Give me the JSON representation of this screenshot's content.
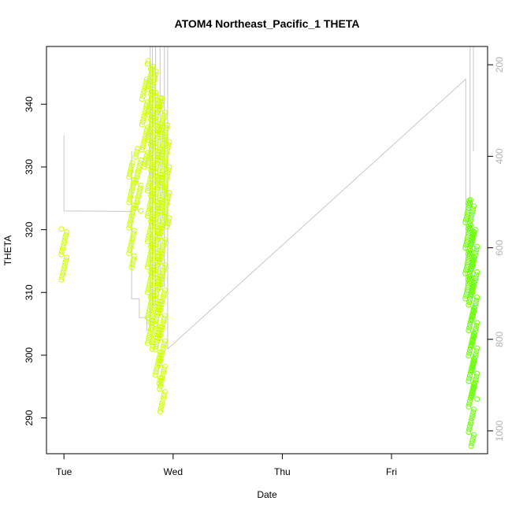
{
  "chart_data": {
    "type": "scatter",
    "title": "ATOM4 Northeast_Pacific_1 THETA",
    "xlabel": "Date",
    "ylabel": "THETA",
    "x_tick_labels": [
      "Tue",
      "Wed",
      "Thu",
      "Fri"
    ],
    "x_tick_values": [
      0,
      1,
      2,
      3
    ],
    "xlim": [
      -0.16,
      3.88
    ],
    "ylim": [
      284.3,
      349.2
    ],
    "y_ticks": [
      290,
      300,
      310,
      320,
      330,
      340
    ],
    "y2lim": [
      1050,
      160
    ],
    "y2_ticks": [
      200,
      400,
      600,
      800,
      1000
    ],
    "y2_label_color": "#b3b3b3",
    "grid": false,
    "colors": {
      "scatter_early": "#ccff00",
      "scatter_late": "#66ff00",
      "line": "#c8c8c8",
      "axis": "#000000"
    },
    "series": [
      {
        "role": "scatter-clusters",
        "clusters": [
          {
            "x": 0.0,
            "y_min": 312.0,
            "y_max": 320.5,
            "color": "#ccff00"
          },
          {
            "x": 0.62,
            "y_min": 314.0,
            "y_max": 331.0,
            "color": "#ccff00"
          },
          {
            "x": 0.68,
            "y_min": 323.0,
            "y_max": 333.0,
            "color": "#ccff00"
          },
          {
            "x": 0.74,
            "y_min": 330.0,
            "y_max": 344.0,
            "color": "#ccff00"
          },
          {
            "x": 0.79,
            "y_min": 301.0,
            "y_max": 347.0,
            "color": "#ccff00"
          },
          {
            "x": 0.82,
            "y_min": 302.0,
            "y_max": 346.0,
            "color": "#ccff00"
          },
          {
            "x": 0.86,
            "y_min": 295.5,
            "y_max": 342.0,
            "color": "#ccff00"
          },
          {
            "x": 0.9,
            "y_min": 291.0,
            "y_max": 341.0,
            "color": "#ccff00"
          },
          {
            "x": 0.94,
            "y_min": 320.5,
            "y_max": 337.0,
            "color": "#ccff00"
          },
          {
            "x": 3.7,
            "y_min": 309.0,
            "y_max": 325.0,
            "color": "#66ff00"
          },
          {
            "x": 3.73,
            "y_min": 285.5,
            "y_max": 325.0,
            "color": "#66ff00"
          },
          {
            "x": 3.76,
            "y_min": 293.0,
            "y_max": 320.0,
            "color": "#66ff00"
          }
        ]
      },
      {
        "role": "depth-line",
        "x": [
          0.0,
          0.0,
          0.62,
          0.62,
          0.62,
          0.69,
          0.69,
          0.76,
          0.76,
          0.79,
          0.79,
          0.81,
          0.81,
          0.84,
          0.84,
          0.88,
          0.88,
          0.92,
          0.92,
          0.95,
          0.95,
          3.68,
          3.68,
          3.72,
          3.72,
          3.75,
          3.75
        ],
        "y": [
          335.0,
          323.0,
          322.9,
          332.5,
          309.0,
          309.0,
          306.0,
          306.0,
          304.0,
          304.0,
          349.2,
          349.2,
          308.0,
          308.0,
          349.2,
          349.2,
          311.0,
          311.0,
          349.2,
          349.2,
          301.0,
          344.0,
          310.0,
          310.0,
          349.2,
          349.2,
          332.5
        ]
      }
    ]
  }
}
